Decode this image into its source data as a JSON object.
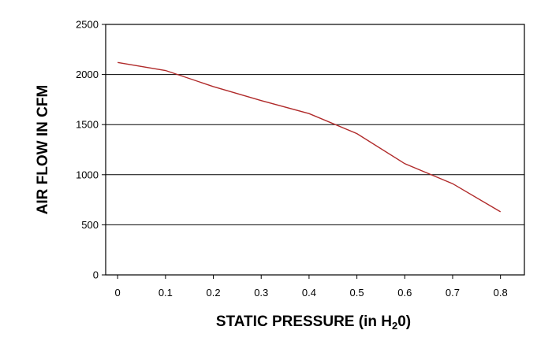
{
  "chart_data": {
    "type": "line",
    "title": "",
    "xlabel": "STATIC PRESSURE (in H",
    "xlabel_sub": "2",
    "xlabel_tail": "0)",
    "ylabel": "AIR FLOW IN CFM",
    "xlim": [
      -0.025,
      0.85
    ],
    "ylim": [
      0,
      2500
    ],
    "x_ticks": [
      "0",
      "0.1",
      "0.2",
      "0.3",
      "0.4",
      "0.5",
      "0.6",
      "0.7",
      "0.8"
    ],
    "y_ticks": [
      "0",
      "500",
      "1000",
      "1500",
      "2000",
      "2500"
    ],
    "grid": "horizontal",
    "line_color": "#b02a2a",
    "series": [
      {
        "x": [
          0.0,
          0.1,
          0.2,
          0.3,
          0.4,
          0.5,
          0.6,
          0.7,
          0.8
        ],
        "values": [
          2120,
          2040,
          1880,
          1740,
          1610,
          1410,
          1110,
          910,
          630
        ]
      }
    ]
  }
}
